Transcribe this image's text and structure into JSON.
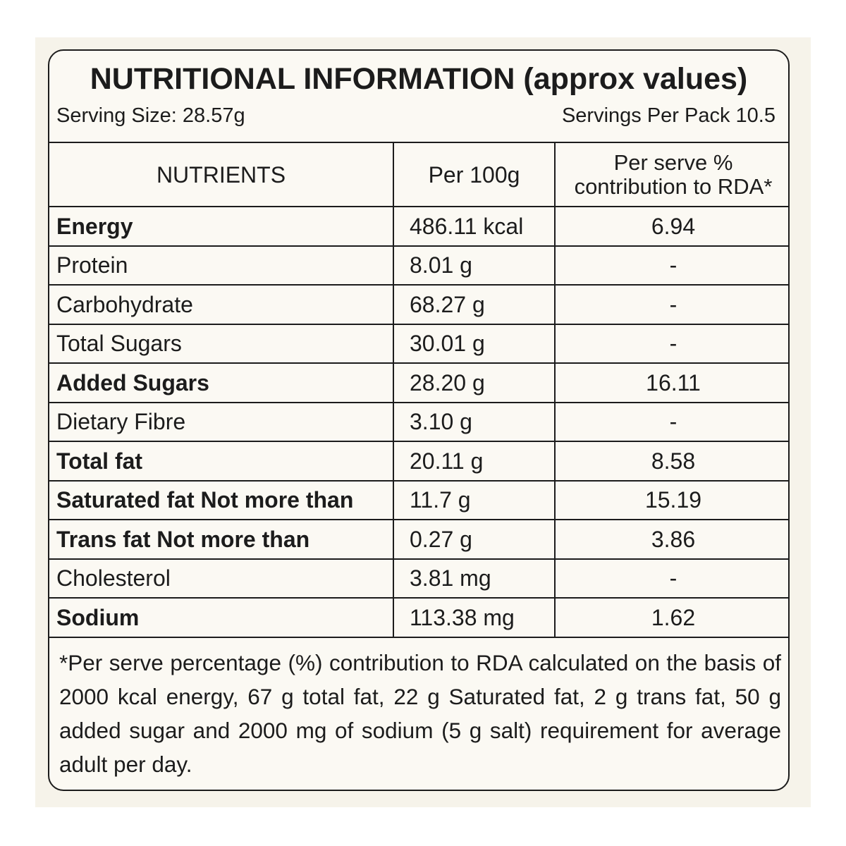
{
  "label": {
    "title": "NUTRITIONAL INFORMATION (approx values)",
    "serving_size": "Serving Size: 28.57g",
    "servings_per_pack": "Servings Per Pack 10.5",
    "headers": {
      "nutrients": "NUTRIENTS",
      "per_100g": "Per 100g",
      "rda": "Per serve % contribution to RDA*"
    },
    "rows": [
      {
        "name": "Energy",
        "per_100g": "486.11 kcal",
        "rda": "6.94",
        "bold": true
      },
      {
        "name": "Protein",
        "per_100g": "8.01 g",
        "rda": "-",
        "bold": false
      },
      {
        "name": "Carbohydrate",
        "per_100g": "68.27 g",
        "rda": "-",
        "bold": false
      },
      {
        "name": "Total Sugars",
        "per_100g": "30.01 g",
        "rda": "-",
        "bold": false
      },
      {
        "name": "Added Sugars",
        "per_100g": "28.20 g",
        "rda": "16.11",
        "bold": true
      },
      {
        "name": "Dietary Fibre",
        "per_100g": "3.10 g",
        "rda": "-",
        "bold": false
      },
      {
        "name": "Total fat",
        "per_100g": "20.11 g",
        "rda": "8.58",
        "bold": true
      },
      {
        "name": "Saturated fat Not more than",
        "per_100g": "11.7 g",
        "rda": "15.19",
        "bold": true
      },
      {
        "name": "Trans fat Not more than",
        "per_100g": "0.27 g",
        "rda": "3.86",
        "bold": true
      },
      {
        "name": "Cholesterol",
        "per_100g": "3.81 mg",
        "rda": "-",
        "bold": false
      },
      {
        "name": "Sodium",
        "per_100g": "113.38 mg",
        "rda": "1.62",
        "bold": true
      }
    ],
    "footnote": "*Per serve percentage (%) contribution to RDA calculated on the basis of 2000 kcal energy, 67 g total fat, 22 g Saturated fat, 2 g trans fat, 50 g added sugar and 2000 mg of sodium (5 g salt) requirement for average adult per day."
  }
}
